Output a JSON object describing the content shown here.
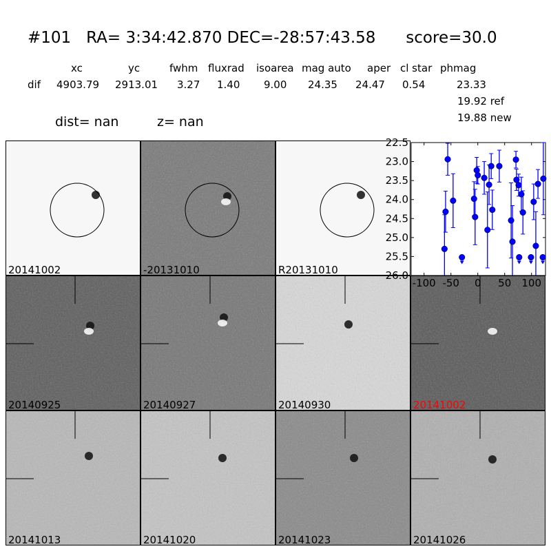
{
  "title": {
    "id": "#101",
    "ra": "RA= 3:34:42.870",
    "dec": "DEC=-28:57:43.58",
    "score": "score=30.0"
  },
  "table": {
    "headers": [
      "xc",
      "yc",
      "fwhm",
      "fluxrad",
      "isoarea",
      "mag auto",
      "aper",
      "cl star",
      "phmag"
    ],
    "row_label": "dif",
    "values": [
      "4903.79",
      "2913.01",
      "3.27",
      "1.40",
      "9.00",
      "24.35",
      "24.47",
      "0.54",
      "23.33"
    ],
    "ref": "19.92 ref",
    "new": "19.88 new"
  },
  "dist": "dist=   nan",
  "z": "z=   nan",
  "panels": [
    {
      "label": "20141002",
      "bg": "#f7f7f7",
      "circle": true
    },
    {
      "label": "-20131010",
      "bg": "#7a7a7a",
      "circle": true
    },
    {
      "label": "R20131010",
      "bg": "#f7f7f7",
      "circle": true
    },
    {
      "label": "20140925",
      "bg": "#5e5e5e"
    },
    {
      "label": "20140927",
      "bg": "#777777"
    },
    {
      "label": "20140930",
      "bg": "#d8d8d8"
    },
    {
      "label": "20141002",
      "bg": "#5a5a5a",
      "label_color": "#ff0000"
    },
    {
      "label": "20141013",
      "bg": "#b8b8b8"
    },
    {
      "label": "20141020",
      "bg": "#c4c4c4"
    },
    {
      "label": "20141023",
      "bg": "#8a8a8a"
    },
    {
      "label": "20141026",
      "bg": "#b0b0b0"
    }
  ],
  "chart_data": {
    "type": "scatter",
    "xlim": [
      -124,
      126
    ],
    "ylim": [
      26.0,
      22.5
    ],
    "y_inverted": true,
    "xticks": [
      "-100",
      "-50",
      "0",
      "50",
      "100"
    ],
    "yticks": [
      "22.5",
      "23.0",
      "23.5",
      "24.0",
      "24.5",
      "25.0",
      "25.5",
      "26.0"
    ],
    "color": "#0000ff",
    "points": [
      {
        "x": -62,
        "y": 25.3,
        "err": 0.9
      },
      {
        "x": -60,
        "y": 24.32,
        "err": 0.54
      },
      {
        "x": -56,
        "y": 22.94,
        "err": 0.42
      },
      {
        "x": -46,
        "y": 24.03,
        "err": 0.71
      },
      {
        "x": -7,
        "y": 23.98,
        "err": 0.45
      },
      {
        "x": -5,
        "y": 24.46,
        "err": 0.73
      },
      {
        "x": -2,
        "y": 23.23,
        "err": 0.34
      },
      {
        "x": 0,
        "y": 23.36,
        "err": 0.23
      },
      {
        "x": 12,
        "y": 23.43,
        "err": 0.43
      },
      {
        "x": 18,
        "y": 24.8,
        "err": 1.0
      },
      {
        "x": 21,
        "y": 23.61,
        "err": 0.52
      },
      {
        "x": 25,
        "y": 23.12,
        "err": 0.33
      },
      {
        "x": 27,
        "y": 24.27,
        "err": 0.52
      },
      {
        "x": 40,
        "y": 23.12,
        "err": 0.42
      },
      {
        "x": 62,
        "y": 24.55,
        "err": 0.99
      },
      {
        "x": 64.5,
        "y": 25.11,
        "err": 0.95
      },
      {
        "x": 71,
        "y": 22.95,
        "err": 0.22
      },
      {
        "x": 72,
        "y": 23.48,
        "err": 0.28
      },
      {
        "x": 76,
        "y": 23.62,
        "err": 0.29
      },
      {
        "x": 81,
        "y": 23.86,
        "err": 0.45
      },
      {
        "x": 84,
        "y": 24.34,
        "err": 0.57
      },
      {
        "x": 104,
        "y": 24.06,
        "err": 0.47
      },
      {
        "x": 108,
        "y": 25.22,
        "err": 0.9
      },
      {
        "x": 112,
        "y": 23.59,
        "err": 0.38
      },
      {
        "x": 122,
        "y": 23.45,
        "err": 0.95
      }
    ],
    "upper_limits": [
      {
        "x": -29.5,
        "y": 25.52
      },
      {
        "x": 77,
        "y": 25.52
      },
      {
        "x": 99,
        "y": 25.52
      },
      {
        "x": 121,
        "y": 25.52
      }
    ]
  }
}
